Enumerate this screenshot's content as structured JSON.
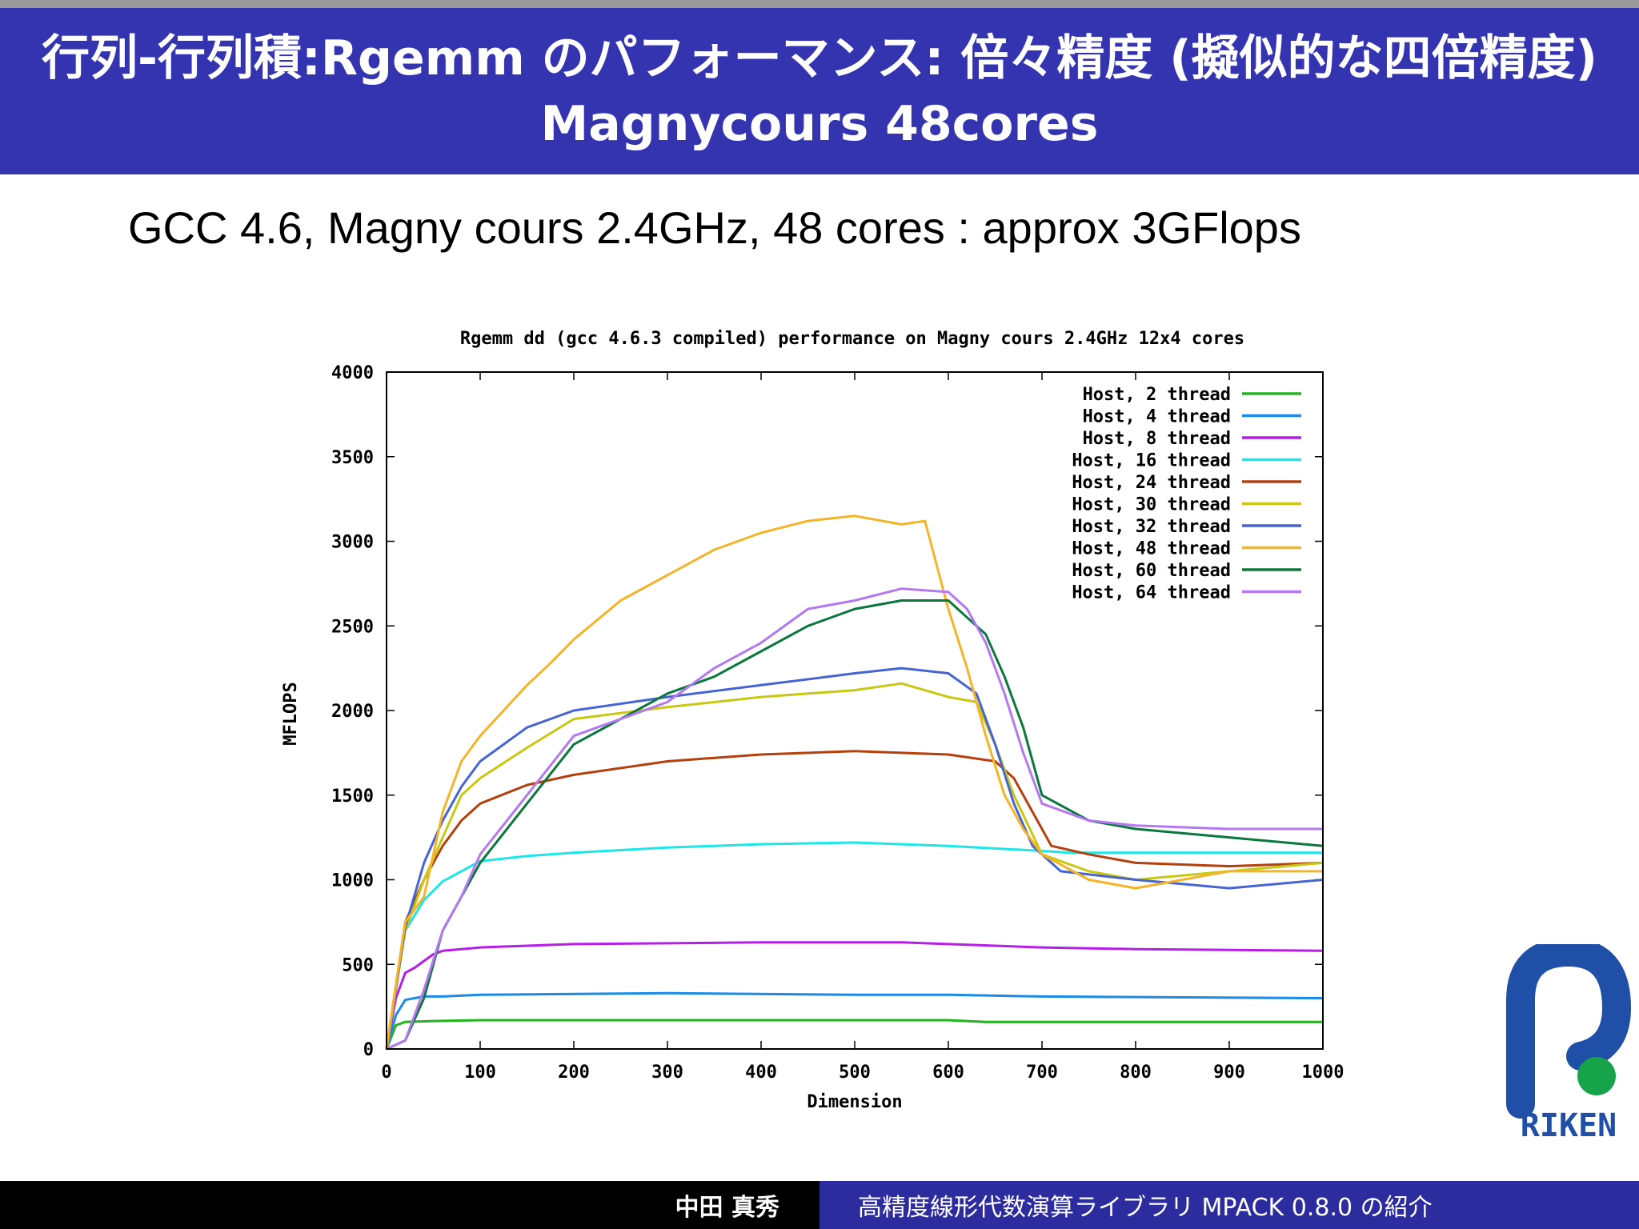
{
  "slide": {
    "title": "行列-行列積:Rgemm のパフォーマンス: 倍々精度 (擬似的な四倍精度) Magnycours 48cores",
    "subtitle": "GCC 4.6, Magny cours 2.4GHz, 48 cores : approx 3GFlops",
    "footer_author": "中田 真秀",
    "footer_title": "高精度線形代数演算ライブラリ MPACK 0.8.0 の紹介",
    "logo_text": "RIKEN"
  },
  "colors": {
    "header_bg": "#3434b0",
    "footer_right_bg": "#2c2c9e",
    "logo_blue": "#1f4fa6",
    "logo_green": "#16a34a"
  },
  "chart_data": {
    "type": "line",
    "title": "Rgemm dd (gcc 4.6.3 compiled) performance on Magny cours 2.4GHz 12x4 cores",
    "xlabel": "Dimension",
    "ylabel": "MFLOPS",
    "xlim": [
      0,
      1000
    ],
    "ylim": [
      0,
      4000
    ],
    "xticks": [
      0,
      100,
      200,
      300,
      400,
      500,
      600,
      700,
      800,
      900,
      1000
    ],
    "yticks": [
      0,
      500,
      1000,
      1500,
      2000,
      2500,
      3000,
      3500,
      4000
    ],
    "grid": false,
    "legend_position": "top-right",
    "series": [
      {
        "name": "Host, 2 thread",
        "color": "#22b41e",
        "x": [
          0,
          10,
          20,
          50,
          100,
          300,
          600,
          640,
          1000
        ],
        "y": [
          0,
          140,
          160,
          165,
          170,
          170,
          170,
          160,
          160
        ]
      },
      {
        "name": "Host, 4 thread",
        "color": "#1a8ae6",
        "x": [
          0,
          10,
          20,
          40,
          60,
          100,
          300,
          500,
          600,
          700,
          1000
        ],
        "y": [
          0,
          200,
          290,
          310,
          310,
          320,
          330,
          320,
          320,
          310,
          300
        ]
      },
      {
        "name": "Host, 8 thread",
        "color": "#b41ee6",
        "x": [
          0,
          10,
          20,
          30,
          40,
          50,
          60,
          80,
          100,
          150,
          200,
          400,
          550,
          600,
          700,
          800,
          1000
        ],
        "y": [
          0,
          300,
          450,
          480,
          520,
          560,
          580,
          590,
          600,
          610,
          620,
          630,
          630,
          620,
          600,
          590,
          580
        ]
      },
      {
        "name": "Host, 16 thread",
        "color": "#1ee6e6",
        "x": [
          0,
          20,
          40,
          60,
          80,
          100,
          150,
          200,
          300,
          400,
          500,
          600,
          700,
          730,
          1000
        ],
        "y": [
          0,
          700,
          880,
          990,
          1050,
          1110,
          1140,
          1160,
          1190,
          1210,
          1220,
          1200,
          1170,
          1160,
          1160
        ]
      },
      {
        "name": "Host, 24 thread",
        "color": "#b4400e",
        "x": [
          0,
          20,
          40,
          60,
          80,
          100,
          150,
          200,
          300,
          400,
          500,
          600,
          650,
          670,
          690,
          710,
          750,
          800,
          900,
          1000
        ],
        "y": [
          0,
          750,
          1000,
          1200,
          1350,
          1450,
          1560,
          1620,
          1700,
          1740,
          1760,
          1740,
          1700,
          1600,
          1400,
          1200,
          1150,
          1100,
          1080,
          1100
        ]
      },
      {
        "name": "Host, 30 thread",
        "color": "#c8c814",
        "x": [
          0,
          20,
          40,
          60,
          80,
          100,
          150,
          200,
          300,
          400,
          500,
          550,
          600,
          630,
          650,
          670,
          700,
          750,
          800,
          900,
          1000
        ],
        "y": [
          0,
          700,
          1000,
          1250,
          1500,
          1600,
          1780,
          1950,
          2020,
          2080,
          2120,
          2160,
          2080,
          2050,
          1800,
          1500,
          1150,
          1050,
          1000,
          1050,
          1100
        ]
      },
      {
        "name": "Host, 32 thread",
        "color": "#4664d2",
        "x": [
          0,
          20,
          40,
          60,
          80,
          100,
          150,
          200,
          300,
          400,
          500,
          550,
          600,
          630,
          650,
          670,
          690,
          720,
          800,
          900,
          1000
        ],
        "y": [
          0,
          720,
          1100,
          1350,
          1550,
          1700,
          1900,
          2000,
          2080,
          2150,
          2220,
          2250,
          2220,
          2100,
          1800,
          1450,
          1200,
          1050,
          1000,
          950,
          1000
        ]
      },
      {
        "name": "Host, 48 thread",
        "color": "#f5b428",
        "x": [
          0,
          20,
          40,
          50,
          60,
          80,
          100,
          125,
          150,
          175,
          200,
          250,
          300,
          350,
          400,
          450,
          500,
          550,
          575,
          600,
          620,
          640,
          660,
          680,
          700,
          750,
          800,
          900,
          1000
        ],
        "y": [
          0,
          750,
          900,
          1150,
          1400,
          1700,
          1850,
          2000,
          2150,
          2280,
          2420,
          2650,
          2800,
          2950,
          3050,
          3120,
          3150,
          3100,
          3120,
          2600,
          2250,
          1850,
          1500,
          1300,
          1150,
          1000,
          950,
          1050,
          1050
        ]
      },
      {
        "name": "Host, 60 thread",
        "color": "#0a783c",
        "x": [
          0,
          20,
          40,
          60,
          80,
          100,
          150,
          200,
          250,
          300,
          350,
          400,
          450,
          500,
          550,
          600,
          620,
          640,
          660,
          680,
          700,
          750,
          800,
          900,
          1000
        ],
        "y": [
          0,
          50,
          300,
          700,
          900,
          1100,
          1450,
          1800,
          1950,
          2100,
          2200,
          2350,
          2500,
          2600,
          2650,
          2650,
          2550,
          2450,
          2200,
          1900,
          1500,
          1350,
          1300,
          1250,
          1200
        ]
      },
      {
        "name": "Host, 64 thread",
        "color": "#b478f0",
        "x": [
          0,
          20,
          40,
          60,
          80,
          100,
          150,
          200,
          250,
          300,
          350,
          400,
          450,
          500,
          550,
          600,
          620,
          640,
          660,
          680,
          700,
          750,
          800,
          900,
          1000
        ],
        "y": [
          0,
          50,
          350,
          700,
          900,
          1150,
          1500,
          1850,
          1950,
          2050,
          2250,
          2400,
          2600,
          2650,
          2720,
          2700,
          2600,
          2400,
          2100,
          1750,
          1450,
          1350,
          1320,
          1300,
          1300
        ]
      }
    ]
  }
}
